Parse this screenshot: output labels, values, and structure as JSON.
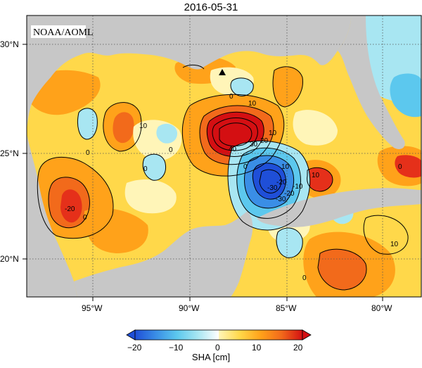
{
  "title": "2016-05-31",
  "source_label": "NOAA/AOML",
  "lon_ticks": [
    "95°W",
    "90°W",
    "85°W",
    "80°W"
  ],
  "lat_ticks": [
    "30°N",
    "25°N",
    "20°N"
  ],
  "contour_labels": [
    "0",
    "10",
    "0",
    "0",
    "10",
    "0",
    "10",
    "20",
    "30",
    "40",
    "-30",
    "-20",
    "-10",
    "10",
    "10",
    "-20",
    "0",
    "0",
    "10",
    "0",
    "-30",
    "-20",
    "0"
  ],
  "colorbar": {
    "label": "SHA [cm]",
    "ticks": [
      "−20",
      "−10",
      "0",
      "10",
      "20"
    ],
    "range": [
      -20,
      20
    ]
  },
  "colors": {
    "land": "#c7c7c7",
    "ocean_base": "#ffd84a",
    "strong_positive": "#d40f12",
    "strong_negative": "#1f4fd8"
  }
}
